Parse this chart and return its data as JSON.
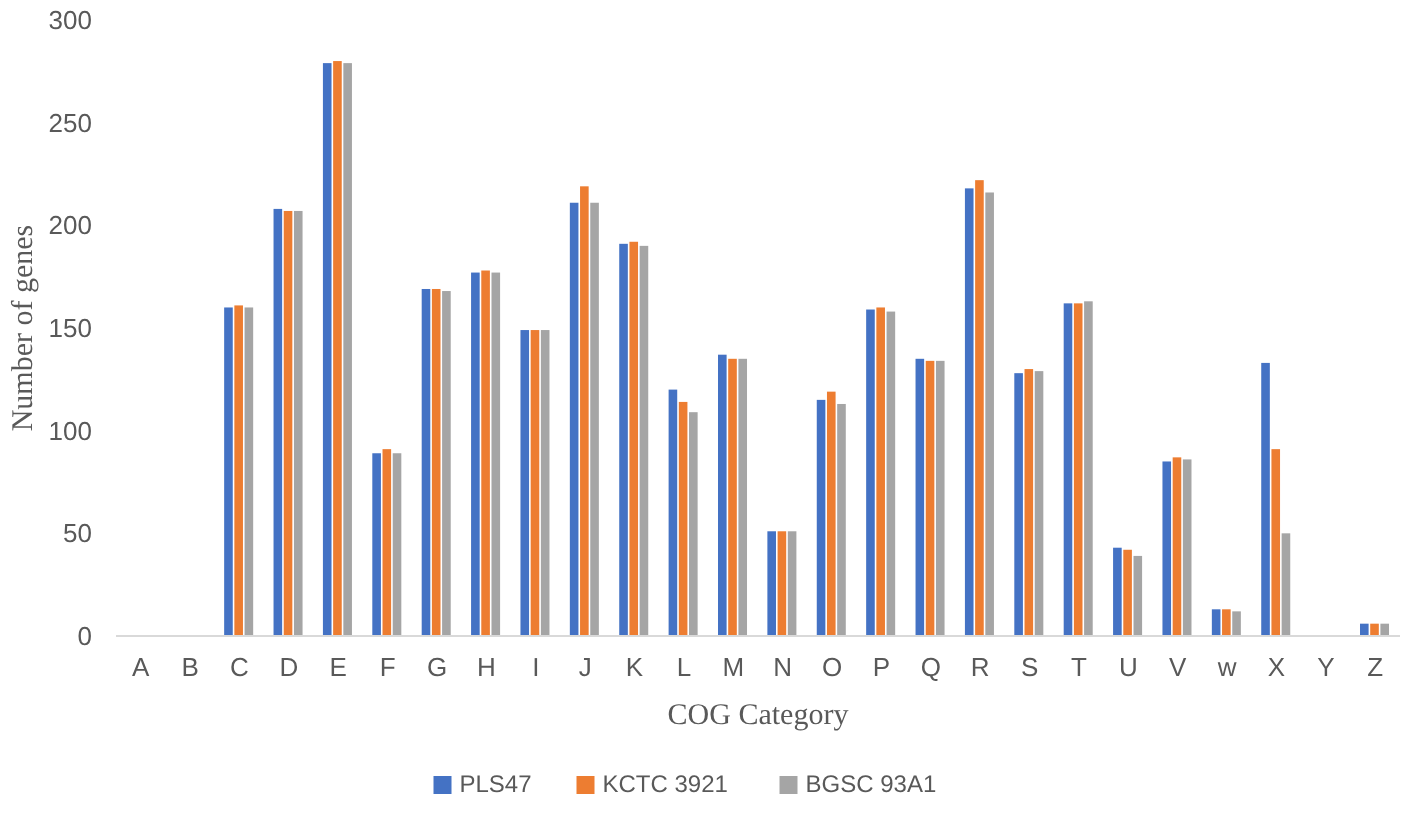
{
  "chart_data": {
    "type": "bar",
    "xlabel": "COG Category",
    "ylabel": "Number of genes",
    "categories": [
      "A",
      "B",
      "C",
      "D",
      "E",
      "F",
      "G",
      "H",
      "I",
      "J",
      "K",
      "L",
      "M",
      "N",
      "O",
      "P",
      "Q",
      "R",
      "S",
      "T",
      "U",
      "V",
      "w",
      "X",
      "Y",
      "Z"
    ],
    "series": [
      {
        "name": "PLS47",
        "color": "#4472c4",
        "values": [
          0,
          0,
          160,
          208,
          279,
          89,
          169,
          177,
          149,
          211,
          191,
          120,
          137,
          51,
          115,
          159,
          135,
          218,
          128,
          162,
          43,
          85,
          13,
          133,
          0,
          6
        ]
      },
      {
        "name": "KCTC 3921",
        "color": "#ed7d31",
        "values": [
          0,
          0,
          161,
          207,
          280,
          91,
          169,
          178,
          149,
          219,
          192,
          114,
          135,
          51,
          119,
          160,
          134,
          222,
          130,
          162,
          42,
          87,
          13,
          91,
          0,
          6
        ]
      },
      {
        "name": "BGSC 93A1",
        "color": "#a5a5a5",
        "values": [
          0,
          0,
          160,
          207,
          279,
          89,
          168,
          177,
          149,
          211,
          190,
          109,
          135,
          51,
          113,
          158,
          134,
          216,
          129,
          163,
          39,
          86,
          12,
          50,
          0,
          6
        ]
      }
    ],
    "ylim": [
      0,
      300
    ],
    "yticks": [
      0,
      50,
      100,
      150,
      200,
      250,
      300
    ],
    "grid": false,
    "legend": "bottom"
  }
}
